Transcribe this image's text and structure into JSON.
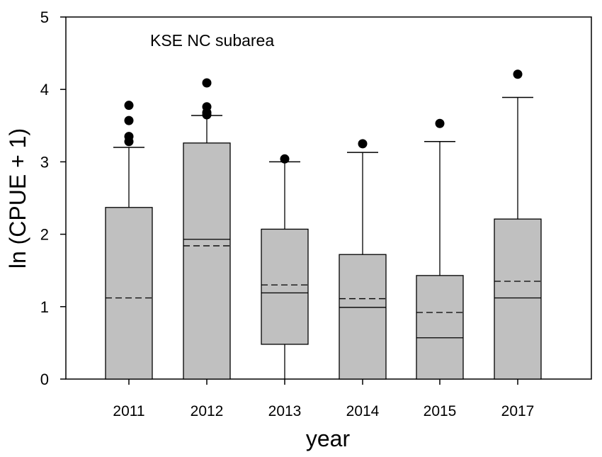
{
  "chart_data": {
    "type": "box",
    "title": "",
    "annotation": "KSE NC subarea",
    "xlabel": "year",
    "ylabel": "ln (CPUE + 1)",
    "ylim": [
      0,
      5
    ],
    "yticks": [
      "0",
      "1",
      "2",
      "3",
      "4",
      "5"
    ],
    "grid": false,
    "categories": [
      "2011",
      "2012",
      "2013",
      "2014",
      "2015",
      "2017"
    ],
    "boxes": [
      {
        "category": "2011",
        "whisker_low": 0,
        "q1": 0,
        "median": 0,
        "mean": 1.12,
        "q3": 2.37,
        "whisker_high": 3.2,
        "outliers": [
          3.28,
          3.35,
          3.57,
          3.78
        ]
      },
      {
        "category": "2012",
        "whisker_low": 0,
        "q1": 0,
        "median": 1.93,
        "mean": 1.84,
        "q3": 3.26,
        "whisker_high": 3.64,
        "outliers": [
          3.65,
          3.68,
          3.76,
          4.09
        ]
      },
      {
        "category": "2013",
        "whisker_low": 0,
        "q1": 0.48,
        "median": 1.19,
        "mean": 1.3,
        "q3": 2.07,
        "whisker_high": 3.0,
        "outliers": [
          3.04
        ]
      },
      {
        "category": "2014",
        "whisker_low": 0,
        "q1": 0,
        "median": 0.99,
        "mean": 1.11,
        "q3": 1.72,
        "whisker_high": 3.13,
        "outliers": [
          3.25
        ]
      },
      {
        "category": "2015",
        "whisker_low": 0,
        "q1": 0,
        "median": 0.57,
        "mean": 0.92,
        "q3": 1.43,
        "whisker_high": 3.28,
        "outliers": [
          3.53
        ]
      },
      {
        "category": "2017",
        "whisker_low": 0,
        "q1": 0,
        "median": 1.12,
        "mean": 1.35,
        "q3": 2.21,
        "whisker_high": 3.89,
        "outliers": [
          4.21
        ]
      }
    ],
    "colors": {
      "box_fill": "#c0c0c0",
      "stroke": "#000000",
      "outlier": "#000000"
    },
    "legend": "none"
  }
}
